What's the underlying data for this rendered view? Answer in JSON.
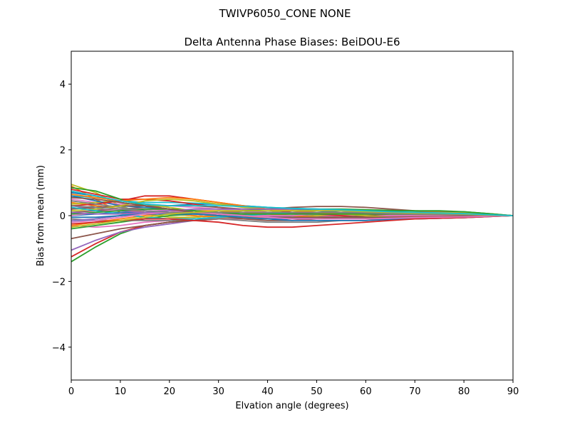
{
  "suptitle": "TWIVP6050_CONE  NONE",
  "chart_data": {
    "type": "line",
    "title": "Delta Antenna Phase Biases: BeiDOU-E6",
    "xlabel": "Elvation angle (degrees)",
    "ylabel": "Bias from mean (mm)",
    "xlim": [
      0,
      90
    ],
    "ylim": [
      -5,
      5
    ],
    "x_ticks": [
      "0",
      "10",
      "20",
      "30",
      "40",
      "50",
      "60",
      "70",
      "80",
      "90"
    ],
    "y_ticks": [
      "−4",
      "−2",
      "0",
      "2",
      "4"
    ],
    "y_tick_values": [
      -4,
      -2,
      0,
      2,
      4
    ],
    "grid": false,
    "legend": "none",
    "x": [
      0,
      5,
      10,
      15,
      20,
      25,
      30,
      35,
      40,
      45,
      50,
      55,
      60,
      65,
      70,
      75,
      80,
      85,
      90
    ],
    "series": [
      {
        "color": "#1f77b4",
        "values": [
          0.7,
          0.6,
          0.4,
          0.3,
          0.3,
          0.35,
          0.35,
          0.3,
          0.25,
          0.2,
          0.15,
          0.1,
          0.1,
          0.1,
          0.08,
          0.06,
          0.05,
          0.02,
          0
        ]
      },
      {
        "color": "#ff7f0e",
        "values": [
          0.9,
          0.5,
          0.1,
          -0.05,
          -0.1,
          -0.05,
          0.0,
          0.05,
          0.1,
          0.1,
          0.1,
          0.05,
          0.05,
          0.05,
          0.05,
          0.05,
          0.05,
          0.02,
          0
        ]
      },
      {
        "color": "#2ca02c",
        "values": [
          -1.4,
          -0.95,
          -0.55,
          -0.3,
          -0.2,
          -0.1,
          -0.05,
          0.0,
          0.05,
          0.05,
          0.05,
          0.05,
          0.05,
          0.05,
          0.05,
          0.05,
          0.05,
          0.02,
          0
        ]
      },
      {
        "color": "#d62728",
        "values": [
          -1.25,
          -0.85,
          -0.5,
          -0.3,
          -0.2,
          -0.15,
          -0.1,
          -0.05,
          -0.05,
          0.0,
          0.0,
          0.0,
          0.0,
          0.0,
          0.0,
          0.0,
          0.0,
          0.0,
          0
        ]
      },
      {
        "color": "#9467bd",
        "values": [
          -1.05,
          -0.75,
          -0.5,
          -0.35,
          -0.25,
          -0.15,
          -0.1,
          -0.1,
          -0.05,
          -0.05,
          -0.05,
          0.0,
          0.0,
          0.0,
          0.0,
          0.0,
          0.0,
          0.0,
          0
        ]
      },
      {
        "color": "#8c564b",
        "values": [
          -0.7,
          -0.55,
          -0.4,
          -0.3,
          -0.2,
          -0.15,
          -0.1,
          -0.05,
          0.0,
          0.0,
          0.0,
          0.0,
          0.0,
          0.0,
          0.0,
          0.0,
          0.0,
          0.0,
          0
        ]
      },
      {
        "color": "#e377c2",
        "values": [
          -0.3,
          -0.35,
          -0.3,
          -0.2,
          -0.15,
          -0.1,
          -0.1,
          -0.1,
          -0.05,
          -0.05,
          0.0,
          0.0,
          0.0,
          0.0,
          0.0,
          0.0,
          0.0,
          0.0,
          0
        ]
      },
      {
        "color": "#7f7f7f",
        "values": [
          0.2,
          0.3,
          0.2,
          0.1,
          0.05,
          0.0,
          -0.05,
          -0.1,
          -0.1,
          -0.1,
          -0.1,
          -0.08,
          -0.05,
          -0.05,
          -0.05,
          -0.03,
          -0.02,
          -0.01,
          0
        ]
      },
      {
        "color": "#bcbd22",
        "values": [
          0.95,
          0.7,
          0.3,
          0.05,
          -0.05,
          -0.05,
          0.0,
          0.05,
          0.1,
          0.15,
          0.15,
          0.15,
          0.12,
          0.1,
          0.1,
          0.1,
          0.08,
          0.04,
          0
        ]
      },
      {
        "color": "#17becf",
        "values": [
          0.6,
          0.55,
          0.45,
          0.4,
          0.4,
          0.38,
          0.35,
          0.3,
          0.25,
          0.22,
          0.2,
          0.18,
          0.15,
          0.12,
          0.1,
          0.08,
          0.06,
          0.03,
          0
        ]
      },
      {
        "color": "#1f77b4",
        "values": [
          0.0,
          0.05,
          0.1,
          0.1,
          0.1,
          0.05,
          0.0,
          -0.05,
          -0.1,
          -0.1,
          -0.1,
          -0.1,
          -0.08,
          -0.06,
          -0.05,
          -0.04,
          -0.03,
          -0.01,
          0
        ]
      },
      {
        "color": "#ff7f0e",
        "values": [
          0.4,
          0.3,
          0.2,
          0.1,
          0.05,
          0.0,
          -0.05,
          -0.05,
          -0.05,
          -0.05,
          -0.05,
          -0.05,
          -0.05,
          -0.05,
          -0.04,
          -0.03,
          -0.02,
          -0.01,
          0
        ]
      },
      {
        "color": "#2ca02c",
        "values": [
          -0.4,
          -0.3,
          -0.2,
          -0.1,
          0.0,
          0.05,
          0.1,
          0.15,
          0.2,
          0.2,
          0.2,
          0.2,
          0.18,
          0.16,
          0.14,
          0.13,
          0.12,
          0.06,
          0
        ]
      },
      {
        "color": "#d62728",
        "values": [
          0.8,
          0.65,
          0.5,
          0.5,
          0.45,
          0.35,
          0.25,
          0.15,
          0.1,
          0.05,
          0.05,
          0.05,
          0.05,
          0.05,
          0.05,
          0.05,
          0.04,
          0.02,
          0
        ]
      },
      {
        "color": "#9467bd",
        "values": [
          0.3,
          0.2,
          0.15,
          0.1,
          0.1,
          0.1,
          0.05,
          0.0,
          -0.05,
          -0.1,
          -0.1,
          -0.1,
          -0.1,
          -0.1,
          -0.08,
          -0.06,
          -0.05,
          -0.02,
          0
        ]
      },
      {
        "color": "#8c564b",
        "values": [
          0.1,
          0.15,
          0.2,
          0.25,
          0.3,
          0.3,
          0.25,
          0.2,
          0.2,
          0.25,
          0.28,
          0.28,
          0.25,
          0.2,
          0.15,
          0.12,
          0.1,
          0.05,
          0
        ]
      },
      {
        "color": "#e377c2",
        "values": [
          0.5,
          0.4,
          0.35,
          0.35,
          0.3,
          0.25,
          0.2,
          0.15,
          0.1,
          0.1,
          0.05,
          0.05,
          0.05,
          0.05,
          0.05,
          0.05,
          0.04,
          0.02,
          0
        ]
      },
      {
        "color": "#7f7f7f",
        "values": [
          -0.1,
          -0.15,
          -0.15,
          -0.15,
          -0.15,
          -0.1,
          -0.1,
          -0.15,
          -0.2,
          -0.2,
          -0.2,
          -0.15,
          -0.15,
          -0.1,
          -0.1,
          -0.08,
          -0.06,
          -0.03,
          0
        ]
      },
      {
        "color": "#bcbd22",
        "values": [
          0.35,
          0.4,
          0.45,
          0.35,
          0.25,
          0.15,
          0.05,
          0.0,
          -0.05,
          -0.05,
          0.0,
          0.05,
          0.08,
          0.1,
          0.1,
          0.1,
          0.08,
          0.04,
          0
        ]
      },
      {
        "color": "#17becf",
        "values": [
          -0.2,
          -0.1,
          0.0,
          0.05,
          0.05,
          0.05,
          0.05,
          0.05,
          0.1,
          0.1,
          0.1,
          0.1,
          0.08,
          0.06,
          0.05,
          0.04,
          0.03,
          0.02,
          0
        ]
      },
      {
        "color": "#1f77b4",
        "values": [
          0.6,
          0.45,
          0.3,
          0.25,
          0.2,
          0.15,
          0.1,
          0.05,
          0.0,
          -0.05,
          -0.05,
          -0.05,
          -0.05,
          -0.05,
          -0.05,
          -0.04,
          -0.03,
          -0.01,
          0
        ]
      },
      {
        "color": "#ff7f0e",
        "values": [
          -0.3,
          -0.2,
          -0.1,
          0.0,
          0.1,
          0.15,
          0.15,
          0.1,
          0.05,
          0.0,
          -0.05,
          -0.05,
          -0.05,
          -0.05,
          -0.05,
          -0.04,
          -0.03,
          -0.01,
          0
        ]
      },
      {
        "color": "#2ca02c",
        "values": [
          0.85,
          0.75,
          0.5,
          0.3,
          0.2,
          0.15,
          0.1,
          0.05,
          0.0,
          0.0,
          0.05,
          0.1,
          0.12,
          0.15,
          0.15,
          0.15,
          0.12,
          0.06,
          0
        ]
      },
      {
        "color": "#d62728",
        "values": [
          0.3,
          0.35,
          0.45,
          0.6,
          0.6,
          0.5,
          0.4,
          0.3,
          0.2,
          0.1,
          0.05,
          0.0,
          -0.05,
          -0.05,
          -0.05,
          -0.04,
          -0.03,
          -0.01,
          0
        ]
      },
      {
        "color": "#9467bd",
        "values": [
          -0.15,
          -0.1,
          0.0,
          0.1,
          0.15,
          0.15,
          0.1,
          0.05,
          0.0,
          -0.05,
          -0.1,
          -0.1,
          -0.1,
          -0.08,
          -0.06,
          -0.05,
          -0.04,
          -0.02,
          0
        ]
      },
      {
        "color": "#8c564b",
        "values": [
          0.2,
          0.25,
          0.3,
          0.3,
          0.2,
          0.1,
          0.0,
          -0.1,
          -0.15,
          -0.15,
          -0.1,
          -0.05,
          0.0,
          0.05,
          0.05,
          0.05,
          0.04,
          0.02,
          0
        ]
      },
      {
        "color": "#e377c2",
        "values": [
          0.0,
          0.1,
          0.2,
          0.2,
          0.15,
          0.1,
          0.05,
          0.0,
          0.0,
          0.0,
          0.05,
          0.05,
          0.05,
          0.05,
          0.05,
          0.04,
          0.03,
          0.01,
          0
        ]
      },
      {
        "color": "#7f7f7f",
        "values": [
          0.45,
          0.35,
          0.25,
          0.15,
          0.1,
          0.05,
          0.05,
          0.05,
          0.05,
          0.05,
          0.05,
          0.05,
          0.05,
          0.05,
          0.04,
          0.03,
          0.02,
          0.01,
          0
        ]
      },
      {
        "color": "#bcbd22",
        "values": [
          0.15,
          0.2,
          0.3,
          0.45,
          0.5,
          0.45,
          0.35,
          0.25,
          0.2,
          0.15,
          0.1,
          0.05,
          0.0,
          -0.05,
          -0.05,
          -0.05,
          -0.04,
          -0.02,
          0
        ]
      },
      {
        "color": "#17becf",
        "values": [
          0.25,
          0.15,
          0.05,
          -0.05,
          -0.1,
          -0.1,
          -0.05,
          0.0,
          0.05,
          0.1,
          0.1,
          0.1,
          0.1,
          0.08,
          0.06,
          0.05,
          0.04,
          0.02,
          0
        ]
      },
      {
        "color": "#1f77b4",
        "values": [
          -0.05,
          -0.05,
          0.0,
          0.05,
          0.05,
          0.05,
          0.0,
          -0.05,
          -0.1,
          -0.15,
          -0.15,
          -0.15,
          -0.15,
          -0.12,
          -0.1,
          -0.08,
          -0.06,
          -0.03,
          0
        ]
      },
      {
        "color": "#ff7f0e",
        "values": [
          0.65,
          0.55,
          0.45,
          0.5,
          0.55,
          0.5,
          0.4,
          0.3,
          0.2,
          0.15,
          0.1,
          0.05,
          0.05,
          0.05,
          0.05,
          0.04,
          0.03,
          0.01,
          0
        ]
      },
      {
        "color": "#2ca02c",
        "values": [
          0.05,
          0.1,
          0.15,
          0.2,
          0.2,
          0.15,
          0.1,
          0.05,
          0.05,
          0.05,
          0.05,
          0.05,
          0.05,
          0.05,
          0.05,
          0.05,
          0.04,
          0.02,
          0
        ]
      },
      {
        "color": "#d62728",
        "values": [
          -0.25,
          -0.2,
          -0.15,
          -0.1,
          -0.1,
          -0.15,
          -0.2,
          -0.3,
          -0.35,
          -0.35,
          -0.3,
          -0.25,
          -0.2,
          -0.15,
          -0.1,
          -0.08,
          -0.06,
          -0.03,
          0
        ]
      },
      {
        "color": "#9467bd",
        "values": [
          0.1,
          0.05,
          0.05,
          0.1,
          0.15,
          0.2,
          0.2,
          0.2,
          0.2,
          0.2,
          0.2,
          0.15,
          0.1,
          0.08,
          0.06,
          0.05,
          0.04,
          0.02,
          0
        ]
      },
      {
        "color": "#8c564b",
        "values": [
          0.55,
          0.5,
          0.4,
          0.3,
          0.2,
          0.1,
          0.05,
          0.0,
          -0.05,
          -0.05,
          -0.05,
          -0.05,
          -0.05,
          -0.05,
          -0.04,
          -0.03,
          -0.02,
          -0.01,
          0
        ]
      },
      {
        "color": "#e377c2",
        "values": [
          -0.2,
          -0.15,
          -0.05,
          0.05,
          0.1,
          0.1,
          0.05,
          0.0,
          -0.05,
          -0.1,
          -0.1,
          -0.1,
          -0.1,
          -0.08,
          -0.06,
          -0.05,
          -0.04,
          -0.02,
          0
        ]
      },
      {
        "color": "#7f7f7f",
        "values": [
          0.3,
          0.25,
          0.2,
          0.15,
          0.1,
          0.1,
          0.1,
          0.1,
          0.1,
          0.1,
          0.1,
          0.1,
          0.08,
          0.06,
          0.05,
          0.04,
          0.03,
          0.01,
          0
        ]
      },
      {
        "color": "#bcbd22",
        "values": [
          -0.35,
          -0.25,
          -0.15,
          -0.05,
          0.05,
          0.1,
          0.15,
          0.15,
          0.15,
          0.15,
          0.15,
          0.15,
          0.12,
          0.1,
          0.08,
          0.07,
          0.05,
          0.02,
          0
        ]
      },
      {
        "color": "#17becf",
        "values": [
          0.75,
          0.6,
          0.45,
          0.35,
          0.3,
          0.3,
          0.3,
          0.28,
          0.25,
          0.22,
          0.2,
          0.18,
          0.15,
          0.12,
          0.1,
          0.08,
          0.06,
          0.03,
          0
        ]
      }
    ]
  }
}
